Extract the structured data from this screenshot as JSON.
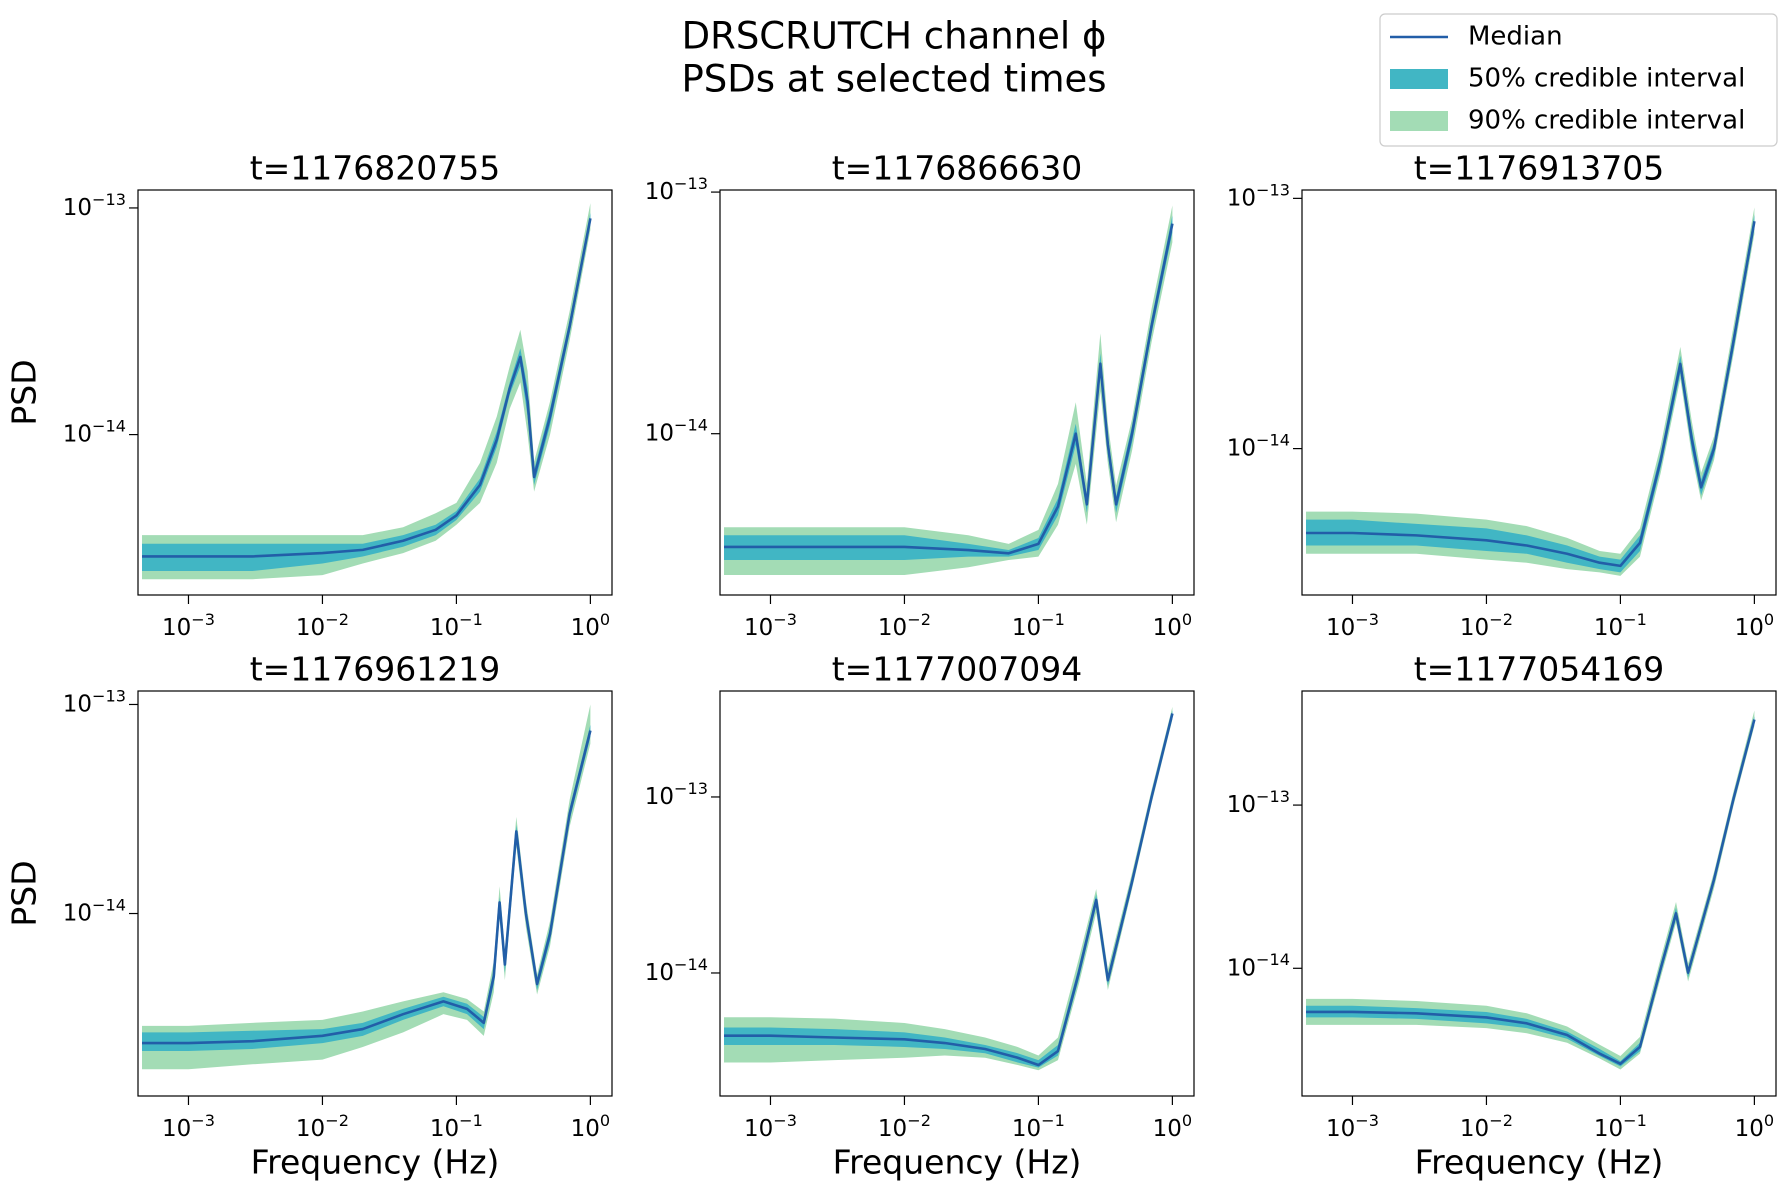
{
  "figure": {
    "title": "DRSCRUTCH channel ϕ",
    "subtitle": "PSDs at selected times",
    "legend_location": "upper right"
  },
  "chart_data": [
    {
      "type": "line",
      "title": "t=1176820755",
      "ylabel": "PSD",
      "xscale": "log",
      "yscale": "log",
      "xlim": [
        0.00042,
        1.45
      ],
      "ylim": [
        1.96e-15,
        1.2e-13
      ],
      "xticks": [
        {
          "value": 0.001,
          "label": "10−3"
        },
        {
          "value": 0.01,
          "label": "10−2"
        },
        {
          "value": 0.1,
          "label": "10−1"
        },
        {
          "value": 1,
          "label": "100"
        }
      ],
      "yticks": [
        {
          "value": 1e-14,
          "label": "10−14"
        },
        {
          "value": 1e-13,
          "label": "10−13"
        }
      ],
      "x": [
        0.00045,
        0.001,
        0.003,
        0.01,
        0.02,
        0.04,
        0.07,
        0.1,
        0.15,
        0.2,
        0.25,
        0.3,
        0.34,
        0.38,
        0.5,
        0.7,
        1.0
      ],
      "series": [
        {
          "name": "90% credible interval",
          "color": "#a3dcb5",
          "lower": [
            2.3e-15,
            2.3e-15,
            2.3e-15,
            2.4e-15,
            2.7e-15,
            3e-15,
            3.4e-15,
            4e-15,
            5e-15,
            7.5e-15,
            1.3e-14,
            1.7e-14,
            1e-14,
            5.6e-15,
            1e-14,
            2.6e-14,
            8e-14
          ],
          "upper": [
            3.6e-15,
            3.6e-15,
            3.6e-15,
            3.6e-15,
            3.6e-15,
            3.9e-15,
            4.5e-15,
            5e-15,
            7.5e-15,
            1.2e-14,
            2e-14,
            2.9e-14,
            1.9e-14,
            7.6e-15,
            1.4e-14,
            3.5e-14,
            1.05e-13
          ]
        },
        {
          "name": "50% credible interval",
          "color": "#41b6c4",
          "lower": [
            2.5e-15,
            2.5e-15,
            2.5e-15,
            2.7e-15,
            2.9e-15,
            3.2e-15,
            3.6e-15,
            4.2e-15,
            5.6e-15,
            8.8e-15,
            1.5e-14,
            2e-14,
            1.2e-14,
            6e-15,
            1.1e-14,
            2.8e-14,
            8.5e-14
          ],
          "upper": [
            3.3e-15,
            3.3e-15,
            3.3e-15,
            3.3e-15,
            3.3e-15,
            3.6e-15,
            4e-15,
            4.6e-15,
            6.4e-15,
            1.03e-14,
            1.7e-14,
            2.4e-14,
            1.6e-14,
            7e-15,
            1.3e-14,
            3.2e-14,
            9.5e-14
          ]
        },
        {
          "name": "Median",
          "color": "#225ea8",
          "values": [
            2.9e-15,
            2.9e-15,
            2.9e-15,
            3e-15,
            3.1e-15,
            3.4e-15,
            3.8e-15,
            4.4e-15,
            6e-15,
            9.5e-15,
            1.6e-14,
            2.2e-14,
            1.4e-14,
            6.5e-15,
            1.2e-14,
            3e-14,
            9e-14
          ]
        }
      ]
    },
    {
      "type": "line",
      "title": "t=1176866630",
      "xscale": "log",
      "yscale": "log",
      "xlim": [
        0.00042,
        1.45
      ],
      "ylim": [
        2.15e-15,
        1.02e-13
      ],
      "xticks": [
        {
          "value": 0.001,
          "label": "10−3"
        },
        {
          "value": 0.01,
          "label": "10−2"
        },
        {
          "value": 0.1,
          "label": "10−1"
        },
        {
          "value": 1,
          "label": "100"
        }
      ],
      "yticks": [
        {
          "value": 1e-14,
          "label": "10−14"
        },
        {
          "value": 1e-13,
          "label": "10−13"
        }
      ],
      "x": [
        0.00045,
        0.001,
        0.003,
        0.01,
        0.03,
        0.06,
        0.1,
        0.14,
        0.19,
        0.23,
        0.29,
        0.33,
        0.38,
        0.5,
        0.7,
        1.0
      ],
      "series": [
        {
          "name": "90% credible interval",
          "color": "#a3dcb5",
          "lower": [
            2.6e-15,
            2.6e-15,
            2.6e-15,
            2.6e-15,
            2.8e-15,
            3e-15,
            3.1e-15,
            4.2e-15,
            7.5e-15,
            4.2e-15,
            1.5e-14,
            7.5e-15,
            4.3e-15,
            8.5e-15,
            2.4e-14,
            6.2e-14
          ],
          "upper": [
            4.1e-15,
            4.1e-15,
            4.1e-15,
            4.1e-15,
            3.8e-15,
            3.5e-15,
            4e-15,
            6.2e-15,
            1.35e-14,
            6.2e-15,
            2.6e-14,
            1.1e-14,
            6.1e-15,
            1.15e-14,
            3.3e-14,
            8.8e-14
          ]
        },
        {
          "name": "50% credible interval",
          "color": "#41b6c4",
          "lower": [
            3e-15,
            3e-15,
            3e-15,
            3e-15,
            3.1e-15,
            3.1e-15,
            3.3e-15,
            4.6e-15,
            9e-15,
            4.7e-15,
            1.75e-14,
            8.2e-15,
            4.7e-15,
            9.2e-15,
            2.6e-14,
            6.8e-14
          ],
          "upper": [
            3.8e-15,
            3.8e-15,
            3.8e-15,
            3.8e-15,
            3.5e-15,
            3.3e-15,
            3.7e-15,
            5.4e-15,
            1.1e-14,
            5.5e-15,
            2.15e-14,
            9.8e-15,
            5.5e-15,
            1.08e-14,
            3e-14,
            8e-14
          ]
        },
        {
          "name": "Median",
          "color": "#225ea8",
          "values": [
            3.4e-15,
            3.4e-15,
            3.4e-15,
            3.4e-15,
            3.3e-15,
            3.2e-15,
            3.5e-15,
            5e-15,
            1e-14,
            5.1e-15,
            1.95e-14,
            9e-15,
            5.1e-15,
            1e-14,
            2.8e-14,
            7.4e-14
          ]
        }
      ]
    },
    {
      "type": "line",
      "title": "t=1176913705",
      "xscale": "log",
      "yscale": "log",
      "xlim": [
        0.00042,
        1.45
      ],
      "ylim": [
        2.6e-15,
        1.08e-13
      ],
      "xticks": [
        {
          "value": 0.001,
          "label": "10−3"
        },
        {
          "value": 0.01,
          "label": "10−2"
        },
        {
          "value": 0.1,
          "label": "10−1"
        },
        {
          "value": 1,
          "label": "100"
        }
      ],
      "yticks": [
        {
          "value": 1e-14,
          "label": "10−14"
        },
        {
          "value": 1e-13,
          "label": "10−13"
        }
      ],
      "x": [
        0.00045,
        0.001,
        0.003,
        0.01,
        0.02,
        0.04,
        0.07,
        0.1,
        0.14,
        0.2,
        0.28,
        0.34,
        0.4,
        0.5,
        0.7,
        1.0
      ],
      "series": [
        {
          "name": "90% credible interval",
          "color": "#a3dcb5",
          "lower": [
            3.8e-15,
            3.8e-15,
            3.8e-15,
            3.6e-15,
            3.5e-15,
            3.3e-15,
            3.2e-15,
            3.1e-15,
            3.7e-15,
            8e-15,
            1.9e-14,
            9.5e-15,
            6.2e-15,
            9e-15,
            2.4e-14,
            7.2e-14
          ],
          "upper": [
            5.6e-15,
            5.6e-15,
            5.5e-15,
            5.2e-15,
            4.9e-15,
            4.4e-15,
            3.9e-15,
            3.8e-15,
            4.8e-15,
            1.03e-14,
            2.55e-14,
            1.3e-14,
            8e-15,
            1.12e-14,
            3.1e-14,
            9.2e-14
          ]
        },
        {
          "name": "50% credible interval",
          "color": "#41b6c4",
          "lower": [
            4.1e-15,
            4.1e-15,
            4.1e-15,
            3.9e-15,
            3.8e-15,
            3.5e-15,
            3.3e-15,
            3.2e-15,
            3.9e-15,
            8.4e-15,
            2e-14,
            1e-14,
            6.5e-15,
            9.4e-15,
            2.5e-14,
            7.6e-14
          ],
          "upper": [
            5.2e-15,
            5.2e-15,
            5e-15,
            4.8e-15,
            4.5e-15,
            4.1e-15,
            3.7e-15,
            3.6e-15,
            4.5e-15,
            9.6e-15,
            2.35e-14,
            1.2e-14,
            7.5e-15,
            1.06e-14,
            2.9e-14,
            8.6e-14
          ]
        },
        {
          "name": "Median",
          "color": "#225ea8",
          "values": [
            4.6e-15,
            4.6e-15,
            4.5e-15,
            4.3e-15,
            4.1e-15,
            3.8e-15,
            3.5e-15,
            3.4e-15,
            4.2e-15,
            9e-15,
            2.18e-14,
            1.1e-14,
            7e-15,
            1e-14,
            2.7e-14,
            8.1e-14
          ]
        }
      ]
    },
    {
      "type": "line",
      "title": "t=1176961219",
      "xlabel": "Frequency (Hz)",
      "ylabel": "PSD",
      "xscale": "log",
      "yscale": "log",
      "xlim": [
        0.00042,
        1.45
      ],
      "ylim": [
        1.34e-15,
        1.16e-13
      ],
      "xticks": [
        {
          "value": 0.001,
          "label": "10−3"
        },
        {
          "value": 0.01,
          "label": "10−2"
        },
        {
          "value": 0.1,
          "label": "10−1"
        },
        {
          "value": 1,
          "label": "100"
        }
      ],
      "yticks": [
        {
          "value": 1e-14,
          "label": "10−14"
        },
        {
          "value": 1e-13,
          "label": "10−13"
        }
      ],
      "x": [
        0.00045,
        0.001,
        0.003,
        0.01,
        0.02,
        0.04,
        0.08,
        0.12,
        0.16,
        0.19,
        0.21,
        0.23,
        0.28,
        0.33,
        0.4,
        0.5,
        0.7,
        1.0
      ],
      "series": [
        {
          "name": "90% credible interval",
          "color": "#a3dcb5",
          "lower": [
            1.8e-15,
            1.8e-15,
            1.9e-15,
            2e-15,
            2.3e-15,
            2.7e-15,
            3.3e-15,
            3.1e-15,
            2.6e-15,
            4.2e-15,
            9.5e-15,
            4.8e-15,
            2.1e-14,
            8.6e-15,
            4.1e-15,
            7e-15,
            2.6e-14,
            6.5e-14
          ],
          "upper": [
            2.9e-15,
            2.9e-15,
            3e-15,
            3.1e-15,
            3.4e-15,
            3.8e-15,
            4.2e-15,
            3.9e-15,
            3.4e-15,
            5.9e-15,
            1.35e-14,
            6.7e-15,
            2.9e-14,
            1.15e-14,
            5.1e-15,
            9.2e-15,
            3.5e-14,
            1e-13
          ]
        },
        {
          "name": "50% credible interval",
          "color": "#41b6c4",
          "lower": [
            2.2e-15,
            2.2e-15,
            2.25e-15,
            2.4e-15,
            2.6e-15,
            3.1e-15,
            3.6e-15,
            3.3e-15,
            2.8e-15,
            4.6e-15,
            1.05e-14,
            5.2e-15,
            2.3e-14,
            9.3e-15,
            4.3e-15,
            7.4e-15,
            2.8e-14,
            7e-14
          ],
          "upper": [
            2.7e-15,
            2.7e-15,
            2.75e-15,
            2.8e-15,
            3e-15,
            3.5e-15,
            4e-15,
            3.7e-15,
            3.2e-15,
            5.4e-15,
            1.2e-14,
            6.2e-15,
            2.65e-14,
            1.07e-14,
            4.9e-15,
            8.6e-15,
            3.2e-14,
            8e-14
          ]
        },
        {
          "name": "Median",
          "color": "#225ea8",
          "values": [
            2.4e-15,
            2.4e-15,
            2.45e-15,
            2.6e-15,
            2.8e-15,
            3.3e-15,
            3.8e-15,
            3.5e-15,
            3e-15,
            5e-15,
            1.13e-14,
            5.7e-15,
            2.47e-14,
            1e-14,
            4.6e-15,
            8e-15,
            3e-14,
            7.5e-14
          ]
        }
      ]
    },
    {
      "type": "line",
      "title": "t=1177007094",
      "xlabel": "Frequency (Hz)",
      "xscale": "log",
      "yscale": "log",
      "xlim": [
        0.00042,
        1.45
      ],
      "ylim": [
        2e-15,
        4e-13
      ],
      "xticks": [
        {
          "value": 0.001,
          "label": "10−3"
        },
        {
          "value": 0.01,
          "label": "10−2"
        },
        {
          "value": 0.1,
          "label": "10−1"
        },
        {
          "value": 1,
          "label": "100"
        }
      ],
      "yticks": [
        {
          "value": 1e-14,
          "label": "10−14"
        },
        {
          "value": 1e-13,
          "label": "10−13"
        }
      ],
      "x": [
        0.00045,
        0.001,
        0.003,
        0.01,
        0.02,
        0.04,
        0.07,
        0.1,
        0.14,
        0.2,
        0.27,
        0.33,
        0.5,
        0.7,
        1.0
      ],
      "series": [
        {
          "name": "90% credible interval",
          "color": "#a3dcb5",
          "lower": [
            3.1e-15,
            3.1e-15,
            3.2e-15,
            3.3e-15,
            3.4e-15,
            3.3e-15,
            3e-15,
            2.8e-15,
            3.2e-15,
            8.6e-15,
            2.2e-14,
            8e-15,
            3e-14,
            9.2e-14,
            2.75e-13
          ],
          "upper": [
            5.6e-15,
            5.6e-15,
            5.5e-15,
            5.2e-15,
            4.8e-15,
            4.3e-15,
            3.8e-15,
            3.4e-15,
            4.3e-15,
            1.2e-14,
            3e-14,
            1.05e-14,
            3.7e-14,
            1.1e-13,
            3.25e-13
          ]
        },
        {
          "name": "50% credible interval",
          "color": "#41b6c4",
          "lower": [
            3.9e-15,
            3.9e-15,
            3.9e-15,
            3.8e-15,
            3.7e-15,
            3.5e-15,
            3.1e-15,
            2.9e-15,
            3.4e-15,
            9.2e-15,
            2.4e-14,
            8.5e-15,
            3.1e-14,
            9.5e-14,
            2.85e-13
          ],
          "upper": [
            4.9e-15,
            4.9e-15,
            4.8e-15,
            4.6e-15,
            4.3e-15,
            3.9e-15,
            3.5e-15,
            3.2e-15,
            3.9e-15,
            1.08e-14,
            2.8e-14,
            9.8e-15,
            3.5e-14,
            1.05e-13,
            3.1e-13
          ]
        },
        {
          "name": "Median",
          "color": "#225ea8",
          "values": [
            4.4e-15,
            4.4e-15,
            4.3e-15,
            4.2e-15,
            4e-15,
            3.7e-15,
            3.3e-15,
            3e-15,
            3.6e-15,
            1e-14,
            2.6e-14,
            9.1e-15,
            3.3e-14,
            1e-13,
            2.98e-13
          ]
        }
      ]
    },
    {
      "type": "line",
      "title": "t=1177054169",
      "xlabel": "Frequency (Hz)",
      "xscale": "log",
      "yscale": "log",
      "xlim": [
        0.00042,
        1.45
      ],
      "ylim": [
        1.65e-15,
        5e-13
      ],
      "xticks": [
        {
          "value": 0.001,
          "label": "10−3"
        },
        {
          "value": 0.01,
          "label": "10−2"
        },
        {
          "value": 0.1,
          "label": "10−1"
        },
        {
          "value": 1,
          "label": "100"
        }
      ],
      "yticks": [
        {
          "value": 1e-14,
          "label": "10−14"
        },
        {
          "value": 1e-13,
          "label": "10−13"
        }
      ],
      "x": [
        0.00045,
        0.001,
        0.003,
        0.01,
        0.02,
        0.04,
        0.07,
        0.1,
        0.14,
        0.2,
        0.26,
        0.32,
        0.5,
        0.7,
        1.0
      ],
      "series": [
        {
          "name": "90% credible interval",
          "color": "#a3dcb5",
          "lower": [
            4.5e-15,
            4.5e-15,
            4.5e-15,
            4.3e-15,
            4e-15,
            3.5e-15,
            2.8e-15,
            2.4e-15,
            3e-15,
            8.8e-15,
            1.9e-14,
            8.3e-15,
            3.1e-14,
            1e-13,
            3.05e-13
          ],
          "upper": [
            6.5e-15,
            6.5e-15,
            6.3e-15,
            5.9e-15,
            5.3e-15,
            4.4e-15,
            3.4e-15,
            2.9e-15,
            3.8e-15,
            1.15e-14,
            2.55e-14,
            1.07e-14,
            3.9e-14,
            1.22e-13,
            3.8e-13
          ]
        },
        {
          "name": "50% credible interval",
          "color": "#41b6c4",
          "lower": [
            5e-15,
            5e-15,
            4.9e-15,
            4.6e-15,
            4.3e-15,
            3.7e-15,
            2.9e-15,
            2.5e-15,
            3.1e-15,
            9.3e-15,
            2e-14,
            8.8e-15,
            3.3e-14,
            1.04e-13,
            3.2e-13
          ],
          "upper": [
            5.9e-15,
            5.9e-15,
            5.7e-15,
            5.4e-15,
            4.9e-15,
            4.1e-15,
            3.2e-15,
            2.7e-15,
            3.5e-15,
            1.07e-14,
            2.35e-14,
            1e-14,
            3.7e-14,
            1.16e-13,
            3.5e-13
          ]
        },
        {
          "name": "Median",
          "color": "#225ea8",
          "values": [
            5.4e-15,
            5.4e-15,
            5.3e-15,
            5e-15,
            4.6e-15,
            3.9e-15,
            3e-15,
            2.6e-15,
            3.3e-15,
            1e-14,
            2.17e-14,
            9.4e-15,
            3.5e-14,
            1.1e-13,
            3.34e-13
          ]
        }
      ]
    }
  ]
}
